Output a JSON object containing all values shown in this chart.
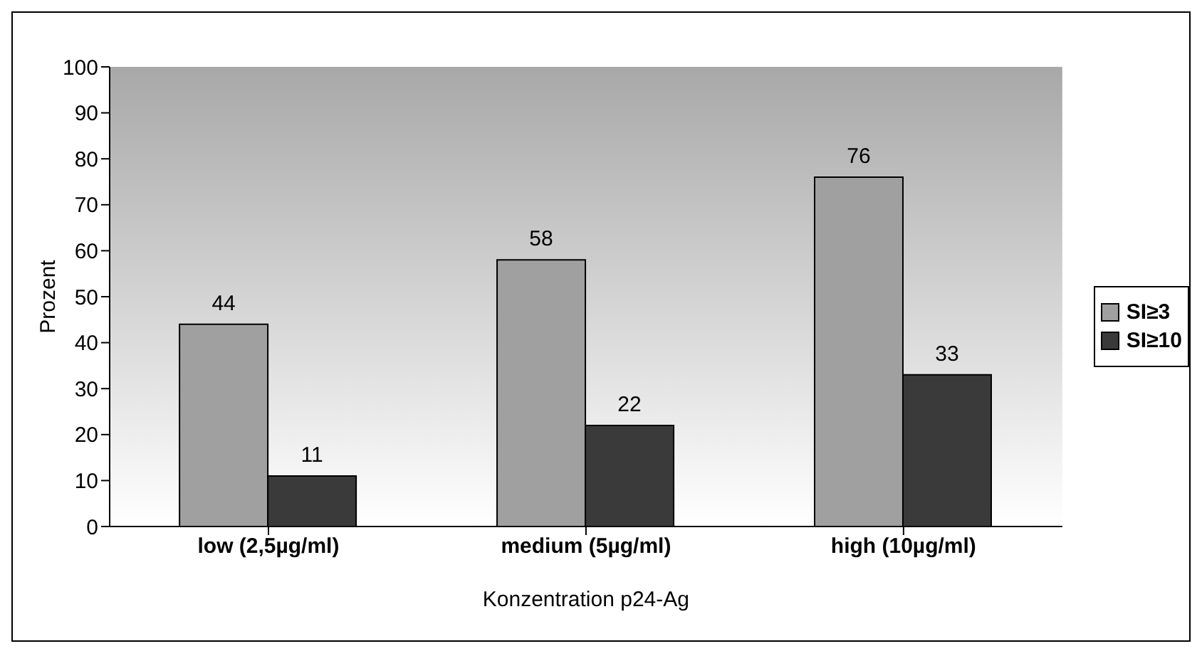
{
  "chart_data": {
    "type": "bar",
    "xlabel": "Konzentration p24-Ag",
    "ylabel": "Prozent",
    "categories": [
      "low (2,5µg/ml)",
      "medium (5µg/ml)",
      "high (10µg/ml)"
    ],
    "series": [
      {
        "name": "SI≥3",
        "color": "#a0a0a0",
        "values": [
          44,
          58,
          76
        ]
      },
      {
        "name": "SI≥10",
        "color": "#3a3a3a",
        "values": [
          11,
          22,
          33
        ]
      }
    ],
    "ylim": [
      0,
      100
    ],
    "yticks": [
      0,
      10,
      20,
      30,
      40,
      50,
      60,
      70,
      80,
      90,
      100
    ],
    "data_labels": true,
    "legend": "right"
  }
}
